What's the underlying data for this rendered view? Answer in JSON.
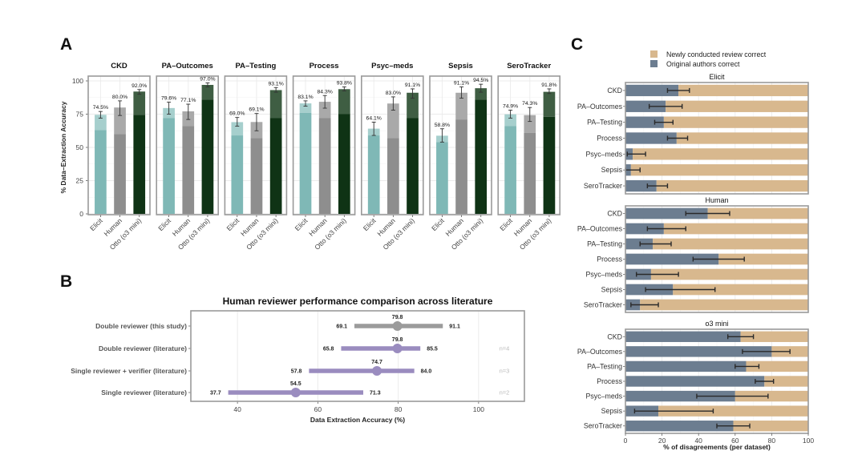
{
  "panels": {
    "a_letter": "A",
    "b_letter": "B",
    "c_letter": "C"
  },
  "colors": {
    "elicit": "#7fb8b6",
    "elicit_light": "#a6cfcd",
    "human": "#8e8e8e",
    "human_light": "#a9a9a9",
    "otto": "#0f3315",
    "otto_light": "#3f5e43",
    "human_lit_purple": "#9a8cbf",
    "this_study_gray": "#9b9b9b",
    "newly_correct": "#d8b88e",
    "original_correct": "#6c7d90",
    "frame": "#9a9a9a",
    "grid": "#ebebeb"
  },
  "chart_data": [
    {
      "id": "panel-a",
      "type": "bar",
      "title": "",
      "ylabel": "% Data–Extraction Accuracy",
      "xlabel": "",
      "ylim": [
        0,
        100
      ],
      "yticks": [
        0,
        25,
        50,
        75,
        100
      ],
      "grid": true,
      "categories": [
        "Elicit",
        "Human",
        "Otto (o3 mini)"
      ],
      "facets": [
        {
          "name": "CKD",
          "totals": [
            74.5,
            80.0,
            92.0
          ],
          "lower": [
            63,
            60,
            74.5
          ],
          "err_low": [
            72,
            74,
            90
          ],
          "err_high": [
            77,
            85,
            93.5
          ],
          "labels": [
            "74.5%",
            "80.0%",
            "92.0%"
          ]
        },
        {
          "name": "PA–Outcomes",
          "totals": [
            79.6,
            77.1,
            97.0
          ],
          "lower": [
            72,
            66,
            86
          ],
          "err_low": [
            75,
            71,
            95.5
          ],
          "err_high": [
            84,
            82.5,
            98.5
          ],
          "labels": [
            "79.6%",
            "77.1%",
            "97.0%"
          ]
        },
        {
          "name": "PA–Testing",
          "totals": [
            69.0,
            69.1,
            93.1
          ],
          "lower": [
            59,
            57,
            72
          ],
          "err_low": [
            66,
            62.5,
            91.5
          ],
          "err_high": [
            72.5,
            75.5,
            95
          ],
          "labels": [
            "69.0%",
            "69.1%",
            "93.1%"
          ]
        },
        {
          "name": "Process",
          "totals": [
            83.1,
            84.3,
            93.8
          ],
          "lower": [
            76,
            72,
            75
          ],
          "err_low": [
            81,
            79.5,
            92.5
          ],
          "err_high": [
            85,
            89,
            95.5
          ],
          "labels": [
            "83.1%",
            "84.3%",
            "93.8%"
          ]
        },
        {
          "name": "Psyc–meds",
          "totals": [
            64.1,
            83.0,
            91.1
          ],
          "lower": [
            59,
            57,
            72
          ],
          "err_low": [
            59,
            78,
            87
          ],
          "err_high": [
            69,
            88,
            94
          ],
          "labels": [
            "64.1%",
            "83.0%",
            "91.1%"
          ]
        },
        {
          "name": "Sepsis",
          "totals": [
            58.8,
            91.1,
            94.5
          ],
          "lower": [
            54,
            71,
            86
          ],
          "err_low": [
            54,
            87,
            91.5
          ],
          "err_high": [
            64,
            95.5,
            97.5
          ],
          "labels": [
            "58.8%",
            "91.1%",
            "94.5%"
          ]
        },
        {
          "name": "SeroTracker",
          "totals": [
            74.9,
            74.3,
            91.8
          ],
          "lower": [
            66,
            61,
            73
          ],
          "err_low": [
            72,
            69.5,
            90.5
          ],
          "err_high": [
            78,
            80,
            94
          ],
          "labels": [
            "74.9%",
            "74.3%",
            "91.8%"
          ]
        }
      ]
    },
    {
      "id": "panel-b",
      "type": "scatter",
      "title": "Human reviewer performance comparison across literature",
      "xlabel": "Data Extraction Accuracy (%)",
      "ylabel": "",
      "xlim": [
        28.4,
        111.4
      ],
      "xticks": [
        40,
        60,
        80,
        100
      ],
      "grid": true,
      "rows": [
        {
          "label": "Double reviewer (this study)",
          "mean": 79.8,
          "low": 69.1,
          "high": 91.1,
          "mean_label": "79.8",
          "low_label": "69.1",
          "high_label": "91.1",
          "n": "",
          "group": "this_study"
        },
        {
          "label": "Double reviewer (literature)",
          "mean": 79.8,
          "low": 65.8,
          "high": 85.5,
          "mean_label": "79.8",
          "low_label": "65.8",
          "high_label": "85.5",
          "n": "n=4",
          "group": "literature"
        },
        {
          "label": "Single reviewer + verifier (literature)",
          "mean": 74.7,
          "low": 57.8,
          "high": 84.0,
          "mean_label": "74.7",
          "low_label": "57.8",
          "high_label": "84.0",
          "n": "n=3",
          "group": "literature"
        },
        {
          "label": "Single reviewer (literature)",
          "mean": 54.5,
          "low": 37.7,
          "high": 71.3,
          "mean_label": "54.5",
          "low_label": "37.7",
          "high_label": "71.3",
          "n": "n=2",
          "group": "literature"
        }
      ]
    },
    {
      "id": "panel-c",
      "type": "bar",
      "stacked": true,
      "orientation": "horizontal",
      "xlabel": "% of disagreements (per dataset)",
      "xlim": [
        0,
        100
      ],
      "xticks": [
        0,
        20,
        40,
        60,
        80,
        100
      ],
      "grid": true,
      "legend": {
        "placement": "top",
        "entries": [
          {
            "label": "Newly conducted review correct",
            "color_key": "newly_correct"
          },
          {
            "label": "Original authors correct",
            "color_key": "original_correct"
          }
        ]
      },
      "categories": [
        "CKD",
        "PA–Outcomes",
        "PA–Testing",
        "Process",
        "Psyc–meds",
        "Sepsis",
        "SeroTracker"
      ],
      "facets": [
        {
          "name": "Elicit",
          "original_correct": [
            29,
            22,
            21,
            28,
            4,
            3,
            17
          ],
          "err_low": [
            23,
            13,
            16,
            23,
            1,
            0,
            12
          ],
          "err_high": [
            35,
            31,
            26,
            34,
            11,
            8,
            23
          ]
        },
        {
          "name": "Human",
          "original_correct": [
            45,
            21,
            15,
            51,
            14,
            26,
            8
          ],
          "err_low": [
            33,
            12,
            8,
            37,
            6,
            11,
            3
          ],
          "err_high": [
            57,
            33,
            25,
            65,
            29,
            49,
            18
          ]
        },
        {
          "name": "o3 mini",
          "original_correct": [
            63,
            80,
            66,
            76,
            60,
            18,
            59
          ],
          "err_low": [
            56,
            64,
            60,
            71,
            39,
            5,
            50
          ],
          "err_high": [
            70,
            90,
            73,
            81,
            78,
            48,
            68
          ]
        }
      ]
    }
  ]
}
